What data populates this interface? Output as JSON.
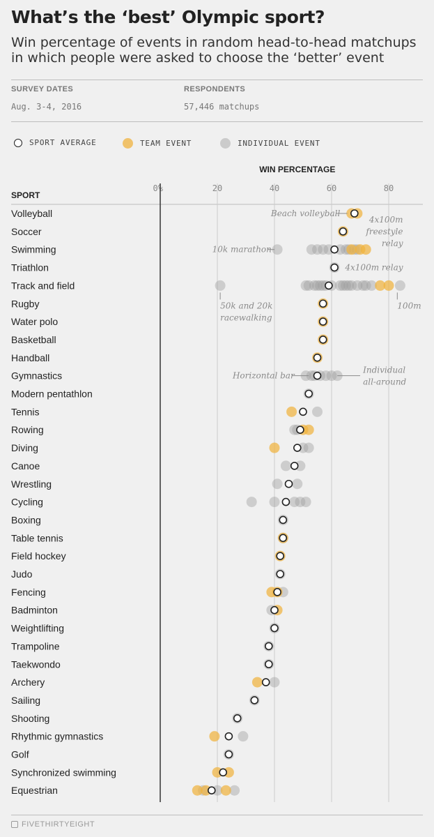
{
  "header": {
    "title": "What’s the ‘best’ Olympic sport?",
    "subtitle": "Win percentage of events in random head-to-head matchups in which people were asked to choose the ‘better’ event"
  },
  "meta": {
    "survey_dates_label": "SURVEY DATES",
    "survey_dates_value": "Aug. 3-4, 2016",
    "respondents_label": "RESPONDENTS",
    "respondents_value": "57,446 matchups"
  },
  "legend": {
    "sport_average": "SPORT AVERAGE",
    "team_event": "TEAM EVENT",
    "individual_event": "INDIVIDUAL EVENT"
  },
  "footer": {
    "brand": "FIVETHIRTYEIGHT"
  },
  "colors": {
    "team": "#f0b33f",
    "individual": "#9e9e9e",
    "average_fill": "#ffffff",
    "average_stroke": "#222222",
    "axis": "#333333",
    "grid": "#cccccc",
    "annotation": "#8a8a8a"
  },
  "chart_data": {
    "type": "scatter",
    "title": "WIN PERCENTAGE",
    "row_header": "SPORT",
    "xlim": [
      0,
      85
    ],
    "xticks": [
      0,
      20,
      40,
      60,
      80
    ],
    "xtick_labels": [
      "0%",
      "20",
      "40",
      "60",
      "80"
    ],
    "sports": [
      {
        "name": "Volleyball",
        "avg": 68,
        "team": [
          67,
          69
        ],
        "individual": []
      },
      {
        "name": "Soccer",
        "avg": 64,
        "team": [
          64
        ],
        "individual": []
      },
      {
        "name": "Swimming",
        "avg": 61,
        "team": [
          67,
          70,
          72
        ],
        "individual": [
          41,
          53,
          55,
          57,
          59,
          63,
          65,
          66,
          68,
          69
        ]
      },
      {
        "name": "Triathlon",
        "avg": 61,
        "team": [],
        "individual": [
          61
        ]
      },
      {
        "name": "Track and field",
        "avg": 59,
        "team": [
          77,
          80
        ],
        "individual": [
          21,
          51,
          52,
          54,
          55,
          56,
          57,
          58,
          60,
          63,
          64,
          65,
          66,
          67,
          69,
          71,
          72,
          74,
          84
        ]
      },
      {
        "name": "Rugby",
        "avg": 57,
        "team": [
          57
        ],
        "individual": []
      },
      {
        "name": "Water polo",
        "avg": 57,
        "team": [
          57
        ],
        "individual": []
      },
      {
        "name": "Basketball",
        "avg": 57,
        "team": [
          57
        ],
        "individual": []
      },
      {
        "name": "Handball",
        "avg": 55,
        "team": [
          55
        ],
        "individual": []
      },
      {
        "name": "Gymnastics",
        "avg": 55,
        "team": [],
        "individual": [
          51,
          53,
          54,
          56,
          58,
          60,
          62
        ]
      },
      {
        "name": "Modern pentathlon",
        "avg": 52,
        "team": [],
        "individual": [
          52
        ]
      },
      {
        "name": "Tennis",
        "avg": 50,
        "team": [
          46
        ],
        "individual": [
          55
        ]
      },
      {
        "name": "Rowing",
        "avg": 49,
        "team": [
          50,
          52
        ],
        "individual": [
          47,
          48
        ]
      },
      {
        "name": "Diving",
        "avg": 48,
        "team": [
          40
        ],
        "individual": [
          50,
          52
        ]
      },
      {
        "name": "Canoe",
        "avg": 47,
        "team": [],
        "individual": [
          44,
          49
        ]
      },
      {
        "name": "Wrestling",
        "avg": 45,
        "team": [],
        "individual": [
          41,
          48
        ]
      },
      {
        "name": "Cycling",
        "avg": 44,
        "team": [],
        "individual": [
          32,
          40,
          47,
          49,
          51
        ]
      },
      {
        "name": "Boxing",
        "avg": 43,
        "team": [],
        "individual": [
          43
        ]
      },
      {
        "name": "Table tennis",
        "avg": 43,
        "team": [
          43
        ],
        "individual": [
          43
        ]
      },
      {
        "name": "Field hockey",
        "avg": 42,
        "team": [
          42
        ],
        "individual": []
      },
      {
        "name": "Judo",
        "avg": 42,
        "team": [],
        "individual": [
          42
        ]
      },
      {
        "name": "Fencing",
        "avg": 41,
        "team": [
          39,
          41
        ],
        "individual": [
          43
        ]
      },
      {
        "name": "Badminton",
        "avg": 40,
        "team": [
          41
        ],
        "individual": [
          39
        ]
      },
      {
        "name": "Weightlifting",
        "avg": 40,
        "team": [],
        "individual": [
          40
        ]
      },
      {
        "name": "Trampoline",
        "avg": 38,
        "team": [],
        "individual": [
          38
        ]
      },
      {
        "name": "Taekwondo",
        "avg": 38,
        "team": [],
        "individual": [
          38
        ]
      },
      {
        "name": "Archery",
        "avg": 37,
        "team": [
          34
        ],
        "individual": [
          40
        ]
      },
      {
        "name": "Sailing",
        "avg": 33,
        "team": [],
        "individual": [
          33
        ]
      },
      {
        "name": "Shooting",
        "avg": 27,
        "team": [],
        "individual": [
          27
        ]
      },
      {
        "name": "Rhythmic gymnastics",
        "avg": 24,
        "team": [
          19
        ],
        "individual": [
          29
        ]
      },
      {
        "name": "Golf",
        "avg": 24,
        "team": [],
        "individual": [
          24
        ]
      },
      {
        "name": "Synchronized swimming",
        "avg": 22,
        "team": [
          20,
          24
        ],
        "individual": []
      },
      {
        "name": "Equestrian",
        "avg": 18,
        "team": [
          13,
          16,
          23
        ],
        "individual": [
          15,
          20,
          26
        ]
      }
    ],
    "annotations": [
      {
        "row": 0,
        "x": 63,
        "text": [
          "Beach volleyball"
        ],
        "align": "end",
        "leader_from": 61.5,
        "leader_to": 65.5
      },
      {
        "row": 1,
        "x": 85,
        "text": [
          "4x100m",
          "freestyle",
          "relay"
        ],
        "align": "end",
        "first_line_offset": -0.5
      },
      {
        "row": 2,
        "x": 39,
        "text": [
          "10k marathon"
        ],
        "align": "end",
        "leader_from": 37.5,
        "leader_to": 40
      },
      {
        "row": 3,
        "x": 85,
        "text": [
          "4x100m relay"
        ],
        "align": "end",
        "first_line_offset": 0
      },
      {
        "row": 4,
        "x": 21,
        "text": [
          "50k and 20k",
          "racewalking"
        ],
        "align": "start",
        "below": true
      },
      {
        "row": 4,
        "x": 83,
        "text": [
          "100m"
        ],
        "align": "start",
        "below": true
      },
      {
        "row": 9,
        "x": 47,
        "text": [
          "Horizontal bar"
        ],
        "align": "end",
        "leader_from": 46,
        "leader_to": 52
      },
      {
        "row": 9,
        "x": 71,
        "text": [
          "Individual",
          "all-around"
        ],
        "align": "start",
        "leader_from": 62,
        "leader_to": 70
      }
    ]
  }
}
